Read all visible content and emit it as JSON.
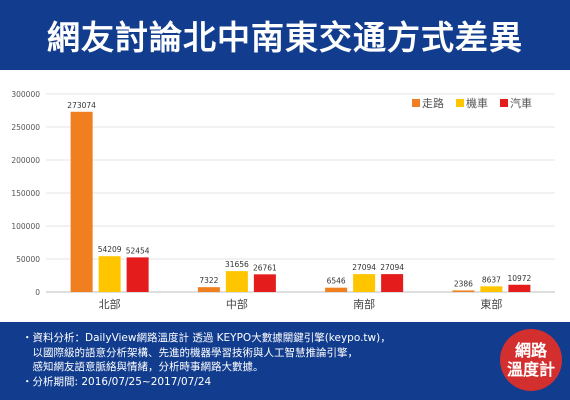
{
  "header": {
    "title": "網友討論北中南東交通方式差異"
  },
  "colors": {
    "header_bg": "#123d8f",
    "walk": "#f07f1f",
    "scooter": "#ffc600",
    "car": "#e41c1c",
    "logo": "#d32f2f"
  },
  "chart_data": {
    "type": "bar",
    "categories": [
      "北部",
      "中部",
      "南部",
      "東部"
    ],
    "series": [
      {
        "name": "走路",
        "color": "#f07f1f",
        "values": [
          273074,
          7322,
          6546,
          2386
        ]
      },
      {
        "name": "機車",
        "color": "#ffc600",
        "values": [
          54209,
          31656,
          27094,
          8637
        ]
      },
      {
        "name": "汽車",
        "color": "#e41c1c",
        "values": [
          52454,
          26761,
          27094,
          10972
        ]
      }
    ],
    "yticks": [
      "0",
      "50000",
      "100000",
      "150000",
      "200000",
      "250000",
      "300000"
    ],
    "ylim": [
      0,
      300000
    ],
    "grid": true,
    "legend_position": "top-right",
    "title": "",
    "xlabel": "",
    "ylabel": ""
  },
  "footer": {
    "lines": [
      "・資料分析：DailyView網路溫度計 透過 KEYPO大數據關鍵引擎(keypo.tw)，",
      "　以國際級的語意分析架構、先進的機器學習技術與人工智慧推論引擎，",
      "　感知網友語意脈絡與情緒，分析時事網路大數據。",
      "・分析期間: 2016/07/25~2017/07/24"
    ],
    "logo_line1": "網路",
    "logo_line2": "溫度計"
  }
}
